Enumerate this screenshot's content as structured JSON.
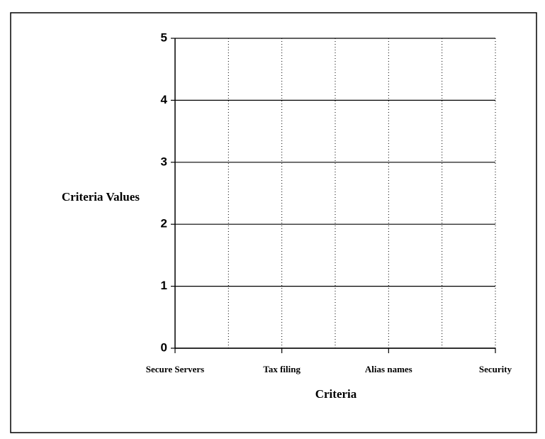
{
  "chart_data": {
    "type": "line",
    "x_label": "Criteria",
    "y_label": "Criteria Values",
    "categories": [
      "Secure Servers",
      null,
      "Tax filing",
      null,
      "Alias names",
      null,
      "Security"
    ],
    "series": [],
    "ylim": [
      0,
      5
    ],
    "yticks": [
      0,
      1,
      2,
      3,
      4,
      5
    ],
    "grid": true
  }
}
